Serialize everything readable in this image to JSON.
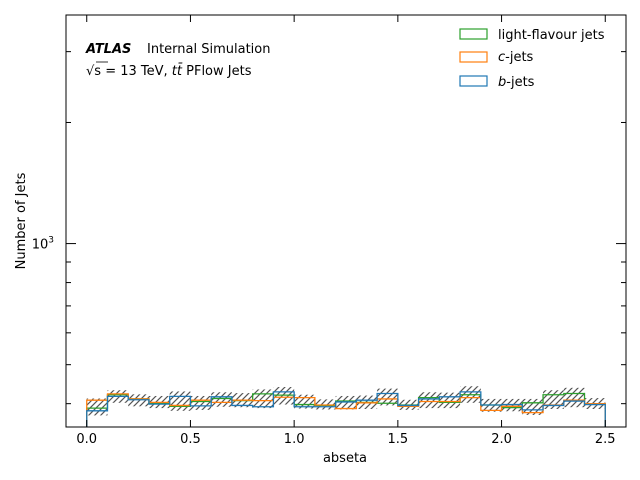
{
  "chart_data": {
    "type": "histogram-step",
    "xlabel": "abseta",
    "ylabel": "Number of Jets",
    "xlim": [
      -0.1,
      2.6
    ],
    "ylim": [
      350,
      3700
    ],
    "yscale": "log",
    "x_ticks": [
      {
        "value": 0.0,
        "label": "0.0"
      },
      {
        "value": 0.5,
        "label": "0.5"
      },
      {
        "value": 1.0,
        "label": "1.0"
      },
      {
        "value": 1.5,
        "label": "1.5"
      },
      {
        "value": 2.0,
        "label": "2.0"
      },
      {
        "value": 2.5,
        "label": "2.5"
      }
    ],
    "y_major_ticks": [
      {
        "value": 1000,
        "label": "10",
        "exp": "3"
      }
    ],
    "y_minor_ticks": [
      400,
      500,
      600,
      700,
      800,
      900,
      2000,
      3000
    ],
    "bin_edges": [
      0.0,
      0.1,
      0.2,
      0.3,
      0.4,
      0.5,
      0.6,
      0.7,
      0.8,
      0.9,
      1.0,
      1.1,
      1.2,
      1.3,
      1.4,
      1.5,
      1.6,
      1.7,
      1.8,
      1.9,
      2.0,
      2.1,
      2.2,
      2.3,
      2.4,
      2.5
    ],
    "series": [
      {
        "name": "light-flavour jets",
        "color": "#2ca02c",
        "values": [
          390,
          421,
          411,
          400,
          394,
          405,
          412,
          407,
          423,
          420,
          398,
          396,
          406,
          403,
          401,
          397,
          414,
          403,
          421,
          397,
          391,
          402,
          421,
          424,
          399
        ]
      },
      {
        "name": "c-jets",
        "color": "#ff7f0e",
        "values": [
          408,
          423,
          411,
          403,
          396,
          408,
          403,
          408,
          407,
          415,
          414,
          397,
          389,
          402,
          411,
          394,
          405,
          405,
          414,
          385,
          394,
          380,
          397,
          408,
          400
        ]
      },
      {
        "name": "b-jets",
        "color": "#1f77b4",
        "values": [
          384,
          417,
          409,
          399,
          417,
          395,
          416,
          396,
          393,
          428,
          393,
          393,
          404,
          408,
          424,
          396,
          411,
          416,
          428,
          397,
          398,
          386,
          396,
          406,
          398
        ]
      }
    ],
    "uncertainty_band": {
      "lower": [
        374,
        402,
        394,
        390,
        384,
        386,
        393,
        392,
        390,
        398,
        389,
        387,
        387,
        388,
        396,
        386,
        390,
        390,
        402,
        382,
        383,
        375,
        388,
        392,
        388
      ],
      "upper": [
        412,
        432,
        422,
        418,
        429,
        418,
        427,
        425,
        434,
        440,
        421,
        410,
        418,
        419,
        436,
        409,
        427,
        426,
        442,
        411,
        411,
        411,
        432,
        438,
        413
      ]
    },
    "legend": {
      "position": "top-right",
      "entries": [
        {
          "label": "light-flavour jets",
          "color": "#2ca02c"
        },
        {
          "label": "c",
          "suffix": "-jets",
          "color": "#ff7f0e"
        },
        {
          "label": "b",
          "suffix": "-jets",
          "color": "#1f77b4"
        }
      ]
    },
    "annotations": {
      "atlas": "ATLAS",
      "atlas_status": "Internal Simulation",
      "line2_sqrt": "√s",
      "line2_energy": " = 13 TeV, ",
      "line2_ttbar": "tt̄",
      "line2_rest": " PFlow Jets"
    }
  }
}
